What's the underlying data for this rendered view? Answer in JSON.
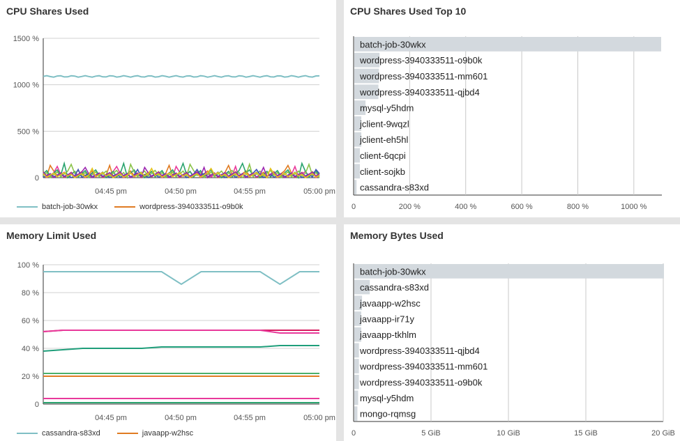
{
  "panels": {
    "cpu_line": {
      "title": "CPU Shares Used",
      "legend": [
        {
          "name": "batch-job-30wkx",
          "color": "#7fbfc4"
        },
        {
          "name": "wordpress-3940333511-o9b0k",
          "color": "#e07b22"
        }
      ]
    },
    "cpu_top": {
      "title": "CPU Shares Used Top 10"
    },
    "mem_limit": {
      "title": "Memory Limit Used",
      "legend": [
        {
          "name": "cassandra-s83xd",
          "color": "#7fbfc4"
        },
        {
          "name": "javaapp-w2hsc",
          "color": "#e07b22"
        }
      ]
    },
    "mem_bytes": {
      "title": "Memory Bytes Used"
    }
  },
  "chart_data": [
    {
      "id": "cpu_line",
      "type": "line",
      "title": "CPU Shares Used",
      "x_ticks": [
        "04:45 pm",
        "04:50 pm",
        "04:55 pm",
        "05:00 pm"
      ],
      "y_ticks": [
        "0",
        "500 %",
        "1000 %",
        "1500 %"
      ],
      "ylim": [
        0,
        1500
      ],
      "series": [
        {
          "name": "batch-job-30wkx",
          "color": "#7fbfc4",
          "level": 1090
        },
        {
          "name": "wordpress-3940333511-o9b0k",
          "color": "#e07b22",
          "level": 60
        },
        {
          "color": "#e8399a",
          "level": 55
        },
        {
          "color": "#2aa36e",
          "level": 70
        },
        {
          "color": "#8bc34a",
          "level": 65
        },
        {
          "color": "#3f51b5",
          "level": 40
        },
        {
          "color": "#9c27b0",
          "level": 50
        },
        {
          "color": "#e4c21b",
          "level": 45
        }
      ]
    },
    {
      "id": "cpu_top",
      "type": "bar",
      "title": "CPU Shares Used Top 10",
      "categories": [
        "batch-job-30wkx",
        "wordpress-3940333511-o9b0k",
        "wordpress-3940333511-mm601",
        "wordpress-3940333511-qjbd4",
        "mysql-y5hdm",
        "jclient-9wqzl",
        "jclient-eh5hl",
        "client-6qcpi",
        "client-sojkb",
        "cassandra-s83xd"
      ],
      "values": [
        1095,
        90,
        88,
        86,
        40,
        25,
        25,
        20,
        20,
        8
      ],
      "xlim": [
        0,
        1100
      ],
      "x_ticks": [
        0,
        200,
        400,
        600,
        800,
        1000
      ],
      "x_tick_labels": [
        "0",
        "200 %",
        "400 %",
        "600 %",
        "800 %",
        "1000 %"
      ]
    },
    {
      "id": "mem_limit",
      "type": "line",
      "title": "Memory Limit Used",
      "x_ticks": [
        "04:45 pm",
        "04:50 pm",
        "04:55 pm",
        "05:00 pm"
      ],
      "y_ticks": [
        "0",
        "20 %",
        "40 %",
        "60 %",
        "80 %",
        "100 %"
      ],
      "ylim": [
        0,
        100
      ],
      "series": [
        {
          "name": "cassandra-s83xd",
          "color": "#7fbfc4",
          "values": [
            95,
            95,
            95,
            95,
            95,
            95,
            95,
            86,
            95,
            95,
            95,
            95,
            86,
            95,
            95
          ]
        },
        {
          "name": "javaapp-w2hsc",
          "color": "#e07b22",
          "values": [
            20,
            20,
            20,
            20,
            20,
            20,
            20,
            20,
            20,
            20,
            20,
            20,
            20,
            20,
            20
          ]
        },
        {
          "color": "#d81b60",
          "values": [
            52,
            53,
            53,
            53,
            53,
            53,
            53,
            53,
            53,
            53,
            53,
            53,
            53,
            53,
            53
          ]
        },
        {
          "color": "#e8399a",
          "values": [
            52,
            53,
            53,
            53,
            53,
            53,
            53,
            53,
            53,
            53,
            53,
            53,
            51,
            51,
            51
          ]
        },
        {
          "color": "#1e9e7a",
          "values": [
            38,
            39,
            40,
            40,
            40,
            40,
            41,
            41,
            41,
            41,
            41,
            41,
            42,
            42,
            42
          ]
        },
        {
          "color": "#4caf6a",
          "values": [
            22,
            22,
            22,
            22,
            22,
            22,
            22,
            22,
            22,
            22,
            22,
            22,
            22,
            22,
            22
          ]
        },
        {
          "color": "#e8399a",
          "values": [
            4,
            4,
            4,
            4,
            4,
            4,
            4,
            4,
            4,
            4,
            4,
            4,
            4,
            4,
            4
          ]
        },
        {
          "color": "#2aa36e",
          "values": [
            1,
            1,
            1,
            1,
            1,
            1,
            1,
            1,
            1,
            1,
            1,
            1,
            1,
            1,
            1
          ]
        }
      ]
    },
    {
      "id": "mem_bytes",
      "type": "bar",
      "title": "Memory Bytes Used",
      "categories": [
        "batch-job-30wkx",
        "cassandra-s83xd",
        "javaapp-w2hsc",
        "javaapp-ir71y",
        "javaapp-tkhlm",
        "wordpress-3940333511-qjbd4",
        "wordpress-3940333511-mm601",
        "wordpress-3940333511-o9b0k",
        "mysql-y5hdm",
        "mongo-rqmsg"
      ],
      "values": [
        20.0,
        1.0,
        0.5,
        0.45,
        0.45,
        0.3,
        0.3,
        0.3,
        0.25,
        0.2
      ],
      "xlim": [
        0,
        20
      ],
      "x_ticks": [
        0,
        5,
        10,
        15,
        20
      ],
      "x_tick_labels": [
        "0",
        "5 GiB",
        "10 GiB",
        "15 GiB",
        "20 GiB"
      ]
    }
  ]
}
